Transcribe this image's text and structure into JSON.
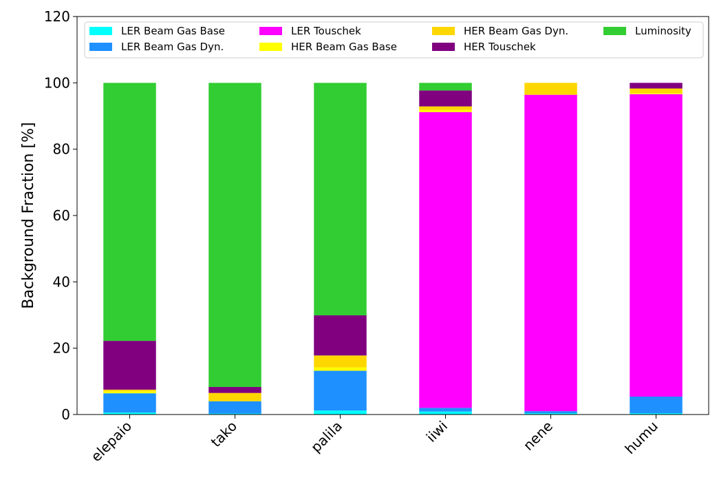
{
  "chart_data": {
    "type": "bar",
    "stacked": true,
    "title": "",
    "xlabel": "",
    "ylabel": "Background Fraction [%]",
    "ylim": [
      0,
      120
    ],
    "yticks": [
      0,
      20,
      40,
      60,
      80,
      100,
      120
    ],
    "grid": false,
    "legend_position": "top",
    "categories": [
      "elepaio",
      "tako",
      "palila",
      "iiwi",
      "nene",
      "humu"
    ],
    "series": [
      {
        "name": "LER Beam Gas Base",
        "color": "#00ffff",
        "values": [
          0.6,
          0.3,
          1.2,
          0.9,
          0.4,
          0.4
        ]
      },
      {
        "name": "LER Beam Gas Dyn.",
        "color": "#1e90ff",
        "values": [
          5.8,
          3.7,
          12.0,
          1.1,
          0.6,
          5.0
        ]
      },
      {
        "name": "LER Touschek",
        "color": "#ff00ff",
        "values": [
          0.0,
          0.0,
          0.0,
          89.2,
          95.4,
          91.2
        ]
      },
      {
        "name": "HER Beam Gas Base",
        "color": "#ffff00",
        "values": [
          0.6,
          0.0,
          1.0,
          0.6,
          0.0,
          0.3
        ]
      },
      {
        "name": "HER Beam Gas Dyn.",
        "color": "#ffd700",
        "values": [
          0.5,
          2.5,
          3.6,
          1.1,
          3.6,
          1.4
        ]
      },
      {
        "name": "HER Touschek",
        "color": "#800080",
        "values": [
          14.7,
          1.8,
          12.1,
          4.8,
          0.0,
          1.7
        ]
      },
      {
        "name": "Luminosity",
        "color": "#32cd32",
        "values": [
          77.8,
          91.7,
          70.1,
          2.3,
          0.0,
          0.0
        ]
      }
    ]
  }
}
